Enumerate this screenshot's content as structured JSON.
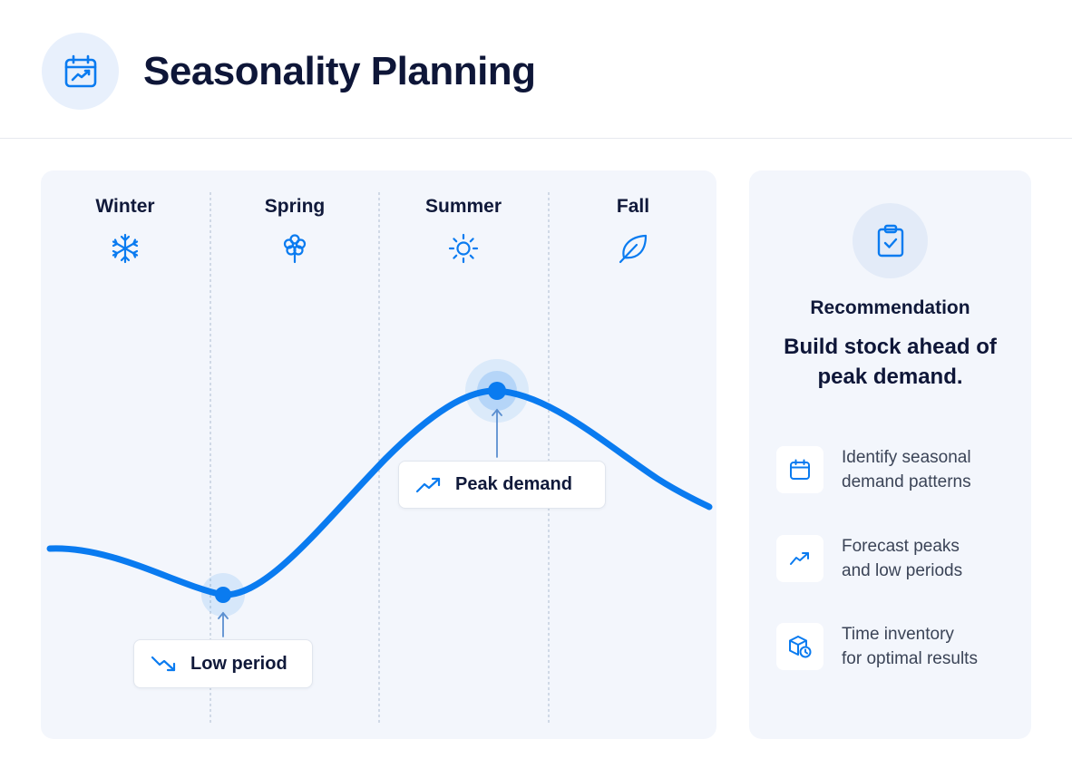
{
  "header": {
    "title": "Seasonality Planning",
    "icon": "calendar-trend-icon"
  },
  "chart": {
    "seasons": [
      {
        "label": "Winter",
        "icon": "snowflake-icon"
      },
      {
        "label": "Spring",
        "icon": "flower-icon"
      },
      {
        "label": "Summer",
        "icon": "sun-icon"
      },
      {
        "label": "Fall",
        "icon": "leaf-icon"
      }
    ],
    "low_callout": {
      "label": "Low period",
      "icon": "trend-down-icon"
    },
    "peak_callout": {
      "label": "Peak demand",
      "icon": "trend-up-icon"
    }
  },
  "recommendation": {
    "icon": "clipboard-check-icon",
    "label": "Recommendation",
    "headline": "Build stock ahead of peak demand.",
    "tips": [
      {
        "icon": "calendar-icon",
        "text": "Identify seasonal\ndemand patterns"
      },
      {
        "icon": "trend-up-icon",
        "text": "Forecast peaks\nand low periods"
      },
      {
        "icon": "box-clock-icon",
        "text": "Time inventory\nfor optimal results"
      }
    ]
  },
  "colors": {
    "accent": "#0a7bf0",
    "panel_bg": "#f3f6fc",
    "title": "#0e1638"
  }
}
